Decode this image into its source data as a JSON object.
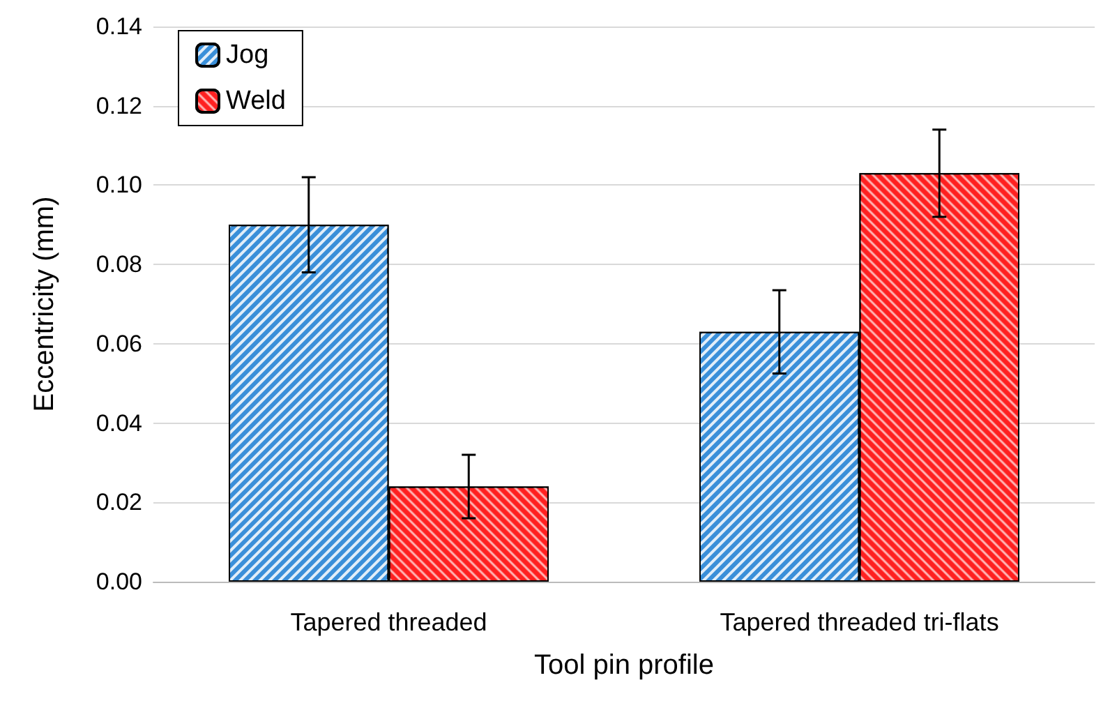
{
  "chart_data": {
    "type": "bar",
    "xlabel": "Tool pin profile",
    "ylabel": "Eccentricity (mm)",
    "categories": [
      "Tapered threaded",
      "Tapered threaded tri-flats"
    ],
    "series": [
      {
        "name": "Jog",
        "color": "#3a8fd9",
        "values": [
          0.09,
          0.063
        ],
        "errors": [
          0.012,
          0.0105
        ]
      },
      {
        "name": "Weld",
        "color": "#ff2020",
        "values": [
          0.024,
          0.103
        ],
        "errors": [
          0.008,
          0.011
        ]
      }
    ],
    "ylim": [
      0,
      0.14
    ],
    "yticks": [
      {
        "value": 0,
        "label": "0.00"
      },
      {
        "value": 0.02,
        "label": "0.02"
      },
      {
        "value": 0.04,
        "label": "0.04"
      },
      {
        "value": 0.06,
        "label": "0.06"
      },
      {
        "value": 0.08,
        "label": "0.08"
      },
      {
        "value": 0.1,
        "label": "0.10"
      },
      {
        "value": 0.12,
        "label": "0.12"
      },
      {
        "value": 0.14,
        "label": "0.14"
      }
    ],
    "grid": "y",
    "legend": "top left"
  }
}
